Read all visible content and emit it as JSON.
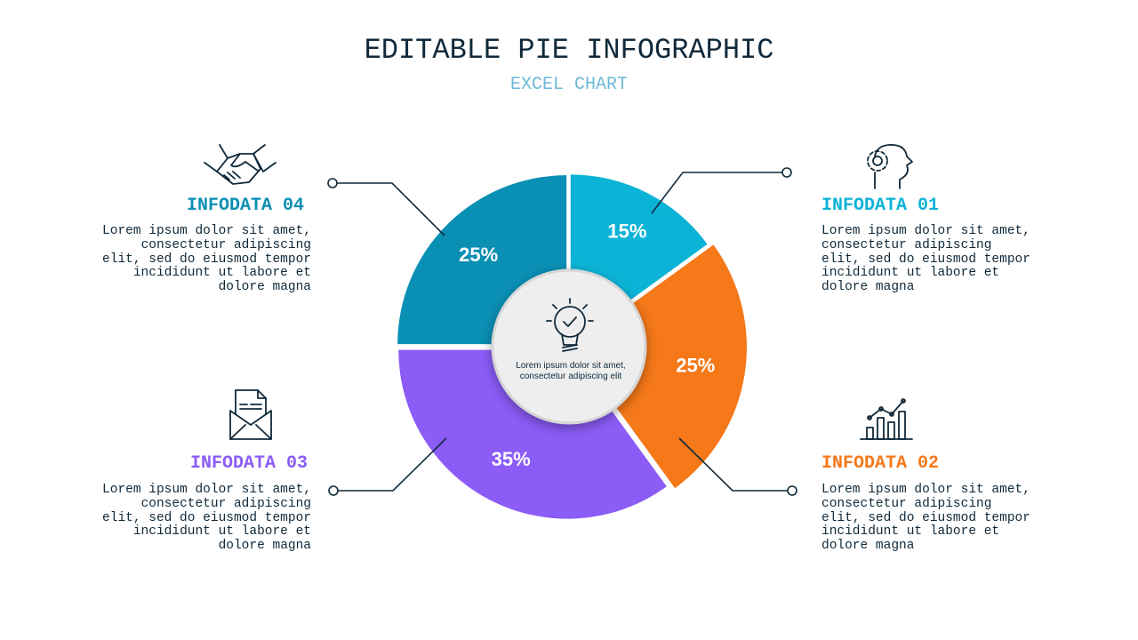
{
  "chart_data": {
    "type": "pie",
    "title": "EDITABLE PIE INFOGRAPHIC",
    "subtitle": "EXCEL CHART",
    "categories": [
      "INFODATA 01",
      "INFODATA 02",
      "INFODATA 03",
      "INFODATA 04"
    ],
    "values": [
      15,
      25,
      35,
      25
    ],
    "value_labels": [
      "15%",
      "25%",
      "35%",
      "25%"
    ],
    "colors": [
      "#0bb3d6",
      "#f57819",
      "#8b5cf6",
      "#0a8fb5"
    ],
    "descriptions": [
      "Lorem ipsum dolor sit amet, consectetur adipiscing elit, sed do eiusmod tempor incididunt ut labore et dolore magna",
      "Lorem ipsum dolor sit amet, consectetur adipiscing elit, sed do eiusmod tempor incididunt ut labore et dolore magna",
      "Lorem ipsum dolor sit amet, consectetur adipiscing elit, sed do eiusmod tempor incididunt ut labore et dolore magna",
      "Lorem ipsum dolor sit amet, consectetur adipiscing elit, sed do eiusmod tempor incididunt ut labore et dolore magna"
    ],
    "center_text": "Lorem ipsum dolor sit amet, consectetur adipiscing elit"
  }
}
